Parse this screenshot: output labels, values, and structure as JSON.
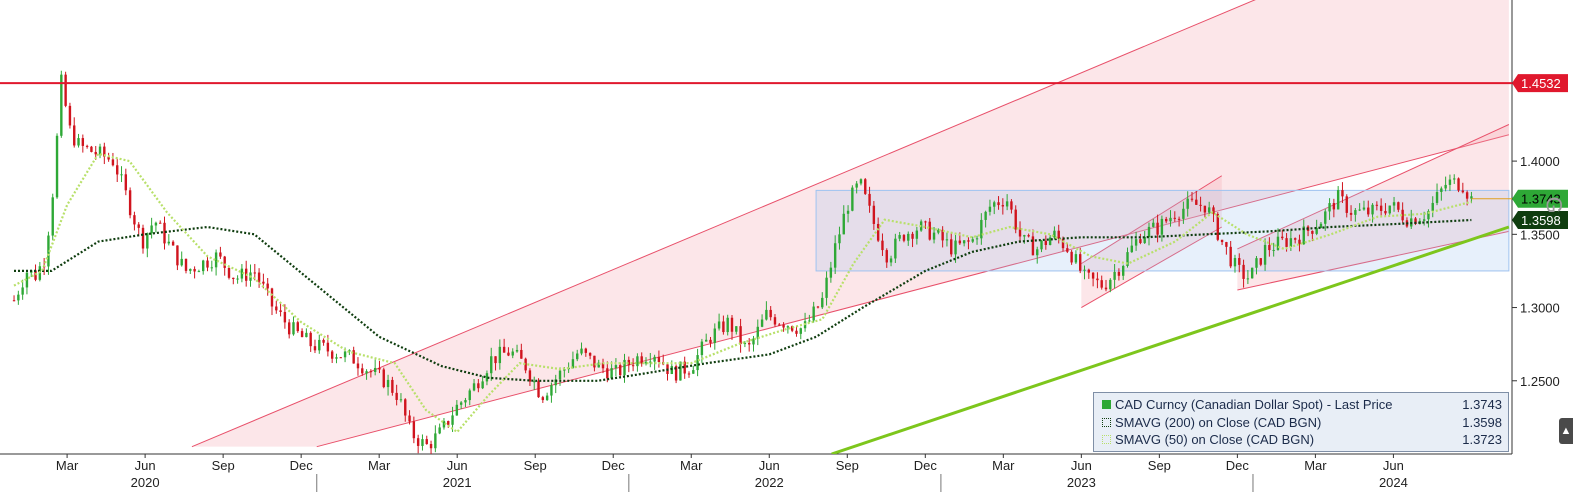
{
  "chart_data": {
    "type": "candlestick",
    "instrument": "CAD Curncy (Canadian Dollar Spot)",
    "ylim": [
      1.2,
      1.51
    ],
    "y_ticks": [
      "1.2500",
      "1.3000",
      "1.3500",
      "1.4000"
    ],
    "y_tick_values": [
      1.25,
      1.3,
      1.35,
      1.4
    ],
    "month_ticks": [
      {
        "label": "Mar",
        "t": 2020.2
      },
      {
        "label": "Jun",
        "t": 2020.45
      },
      {
        "label": "Sep",
        "t": 2020.7
      },
      {
        "label": "Dec",
        "t": 2020.95
      },
      {
        "label": "Mar",
        "t": 2021.2
      },
      {
        "label": "Jun",
        "t": 2021.45
      },
      {
        "label": "Sep",
        "t": 2021.7
      },
      {
        "label": "Dec",
        "t": 2021.95
      },
      {
        "label": "Mar",
        "t": 2022.2
      },
      {
        "label": "Jun",
        "t": 2022.45
      },
      {
        "label": "Sep",
        "t": 2022.7
      },
      {
        "label": "Dec",
        "t": 2022.95
      },
      {
        "label": "Mar",
        "t": 2023.2
      },
      {
        "label": "Jun",
        "t": 2023.45
      },
      {
        "label": "Sep",
        "t": 2023.7
      },
      {
        "label": "Dec",
        "t": 2023.95
      },
      {
        "label": "Mar",
        "t": 2024.2
      },
      {
        "label": "Jun",
        "t": 2024.45
      }
    ],
    "years": [
      {
        "label": "2020",
        "t": 2020.45
      },
      {
        "label": "2021",
        "t": 2021.45
      },
      {
        "label": "2022",
        "t": 2022.45
      },
      {
        "label": "2023",
        "t": 2023.45
      },
      {
        "label": "2024",
        "t": 2024.45
      }
    ],
    "x_range": [
      2020.03,
      2024.7
    ],
    "price_path": [
      [
        2020.03,
        1.305
      ],
      [
        2020.07,
        1.325
      ],
      [
        2020.1,
        1.322
      ],
      [
        2020.13,
        1.335
      ],
      [
        2020.16,
        1.39
      ],
      [
        2020.18,
        1.455
      ],
      [
        2020.21,
        1.42
      ],
      [
        2020.24,
        1.41
      ],
      [
        2020.3,
        1.405
      ],
      [
        2020.35,
        1.4
      ],
      [
        2020.4,
        1.37
      ],
      [
        2020.44,
        1.345
      ],
      [
        2020.48,
        1.36
      ],
      [
        2020.52,
        1.345
      ],
      [
        2020.58,
        1.325
      ],
      [
        2020.63,
        1.33
      ],
      [
        2020.68,
        1.335
      ],
      [
        2020.74,
        1.32
      ],
      [
        2020.8,
        1.325
      ],
      [
        2020.86,
        1.3
      ],
      [
        2020.92,
        1.285
      ],
      [
        2020.98,
        1.275
      ],
      [
        2021.05,
        1.27
      ],
      [
        2021.12,
        1.265
      ],
      [
        2021.18,
        1.255
      ],
      [
        2021.22,
        1.25
      ],
      [
        2021.26,
        1.24
      ],
      [
        2021.3,
        1.215
      ],
      [
        2021.35,
        1.205
      ],
      [
        2021.4,
        1.215
      ],
      [
        2021.44,
        1.23
      ],
      [
        2021.5,
        1.245
      ],
      [
        2021.56,
        1.265
      ],
      [
        2021.62,
        1.27
      ],
      [
        2021.67,
        1.26
      ],
      [
        2021.72,
        1.24
      ],
      [
        2021.78,
        1.255
      ],
      [
        2021.84,
        1.27
      ],
      [
        2021.9,
        1.26
      ],
      [
        2021.96,
        1.255
      ],
      [
        2022.02,
        1.265
      ],
      [
        2022.08,
        1.27
      ],
      [
        2022.14,
        1.255
      ],
      [
        2022.2,
        1.26
      ],
      [
        2022.26,
        1.28
      ],
      [
        2022.32,
        1.29
      ],
      [
        2022.38,
        1.27
      ],
      [
        2022.44,
        1.295
      ],
      [
        2022.5,
        1.29
      ],
      [
        2022.56,
        1.285
      ],
      [
        2022.62,
        1.305
      ],
      [
        2022.66,
        1.34
      ],
      [
        2022.7,
        1.37
      ],
      [
        2022.74,
        1.385
      ],
      [
        2022.78,
        1.36
      ],
      [
        2022.83,
        1.335
      ],
      [
        2022.88,
        1.35
      ],
      [
        2022.93,
        1.355
      ],
      [
        2022.98,
        1.35
      ],
      [
        2023.04,
        1.34
      ],
      [
        2023.1,
        1.345
      ],
      [
        2023.16,
        1.37
      ],
      [
        2023.21,
        1.375
      ],
      [
        2023.26,
        1.345
      ],
      [
        2023.31,
        1.34
      ],
      [
        2023.36,
        1.35
      ],
      [
        2023.41,
        1.34
      ],
      [
        2023.46,
        1.32
      ],
      [
        2023.52,
        1.315
      ],
      [
        2023.58,
        1.33
      ],
      [
        2023.64,
        1.35
      ],
      [
        2023.7,
        1.355
      ],
      [
        2023.75,
        1.365
      ],
      [
        2023.8,
        1.37
      ],
      [
        2023.85,
        1.37
      ],
      [
        2023.9,
        1.345
      ],
      [
        2023.95,
        1.325
      ],
      [
        2023.99,
        1.32
      ],
      [
        2024.04,
        1.34
      ],
      [
        2024.1,
        1.345
      ],
      [
        2024.16,
        1.35
      ],
      [
        2024.22,
        1.36
      ],
      [
        2024.27,
        1.375
      ],
      [
        2024.32,
        1.365
      ],
      [
        2024.38,
        1.365
      ],
      [
        2024.44,
        1.37
      ],
      [
        2024.5,
        1.36
      ],
      [
        2024.56,
        1.365
      ],
      [
        2024.62,
        1.385
      ],
      [
        2024.67,
        1.385
      ],
      [
        2024.7,
        1.374
      ]
    ],
    "series": [
      {
        "name": "SMAVG (200)  on Close (CAD BGN)",
        "color": "#0f3d0f",
        "points": [
          [
            2020.03,
            1.325
          ],
          [
            2020.15,
            1.325
          ],
          [
            2020.3,
            1.345
          ],
          [
            2020.45,
            1.35
          ],
          [
            2020.65,
            1.355
          ],
          [
            2020.8,
            1.35
          ],
          [
            2021.0,
            1.315
          ],
          [
            2021.2,
            1.28
          ],
          [
            2021.4,
            1.26
          ],
          [
            2021.55,
            1.252
          ],
          [
            2021.7,
            1.25
          ],
          [
            2021.9,
            1.25
          ],
          [
            2022.05,
            1.255
          ],
          [
            2022.25,
            1.262
          ],
          [
            2022.45,
            1.268
          ],
          [
            2022.6,
            1.28
          ],
          [
            2022.75,
            1.3
          ],
          [
            2022.95,
            1.325
          ],
          [
            2023.1,
            1.338
          ],
          [
            2023.25,
            1.345
          ],
          [
            2023.45,
            1.348
          ],
          [
            2023.65,
            1.348
          ],
          [
            2023.85,
            1.35
          ],
          [
            2024.05,
            1.352
          ],
          [
            2024.25,
            1.355
          ],
          [
            2024.45,
            1.357
          ],
          [
            2024.7,
            1.3598
          ]
        ]
      },
      {
        "name": "SMAVG (50)  on Close (CAD BGN)",
        "color": "#b8e06a",
        "points": [
          [
            2020.03,
            1.315
          ],
          [
            2020.12,
            1.325
          ],
          [
            2020.2,
            1.37
          ],
          [
            2020.3,
            1.405
          ],
          [
            2020.4,
            1.4
          ],
          [
            2020.52,
            1.365
          ],
          [
            2020.65,
            1.335
          ],
          [
            2020.8,
            1.32
          ],
          [
            2020.95,
            1.29
          ],
          [
            2021.1,
            1.27
          ],
          [
            2021.25,
            1.262
          ],
          [
            2021.35,
            1.23
          ],
          [
            2021.45,
            1.215
          ],
          [
            2021.55,
            1.24
          ],
          [
            2021.65,
            1.262
          ],
          [
            2021.78,
            1.258
          ],
          [
            2021.92,
            1.262
          ],
          [
            2022.05,
            1.262
          ],
          [
            2022.2,
            1.262
          ],
          [
            2022.35,
            1.275
          ],
          [
            2022.5,
            1.285
          ],
          [
            2022.62,
            1.292
          ],
          [
            2022.72,
            1.33
          ],
          [
            2022.82,
            1.36
          ],
          [
            2022.95,
            1.355
          ],
          [
            2023.1,
            1.348
          ],
          [
            2023.22,
            1.355
          ],
          [
            2023.35,
            1.35
          ],
          [
            2023.48,
            1.335
          ],
          [
            2023.6,
            1.33
          ],
          [
            2023.75,
            1.345
          ],
          [
            2023.87,
            1.365
          ],
          [
            2023.98,
            1.35
          ],
          [
            2024.1,
            1.34
          ],
          [
            2024.25,
            1.35
          ],
          [
            2024.4,
            1.362
          ],
          [
            2024.55,
            1.364
          ],
          [
            2024.7,
            1.3723
          ]
        ]
      }
    ],
    "horizontal_lines": [
      {
        "value": 1.4532,
        "color": "#e0182d"
      }
    ],
    "last_price_tags": [
      {
        "label": "1.4532",
        "value": 1.4532,
        "color": "#e0182d",
        "text_color": "#ffffff"
      },
      {
        "label": "1.3743",
        "value": 1.3743,
        "color": "#2ea836",
        "text_color": "#000000"
      },
      {
        "label": "1.3598",
        "value": 1.3598,
        "color": "#0f3d0f",
        "text_color": "#ffffff"
      }
    ],
    "channels": [
      {
        "kind": "band",
        "color": "#f6a5b0",
        "lower": [
          [
            2021.0,
            1.205
          ],
          [
            2024.82,
            1.418
          ]
        ],
        "upper": [
          [
            2020.6,
            1.205
          ],
          [
            2024.82,
            1.583
          ]
        ]
      },
      {
        "kind": "band",
        "color": "#f6a5b0",
        "lower": [
          [
            2023.45,
            1.3
          ],
          [
            2023.9,
            1.355
          ]
        ],
        "upper": [
          [
            2023.45,
            1.33
          ],
          [
            2023.9,
            1.39
          ]
        ]
      },
      {
        "kind": "band",
        "color": "#f6a5b0",
        "lower": [
          [
            2023.95,
            1.312
          ],
          [
            2024.82,
            1.352
          ]
        ],
        "upper": [
          [
            2023.95,
            1.34
          ],
          [
            2024.82,
            1.425
          ]
        ]
      }
    ],
    "range_box": {
      "t0": 2022.6,
      "t1": 2024.82,
      "low": 1.325,
      "high": 1.38,
      "color": "#9fc3f0"
    },
    "support_line": {
      "color": "#7dc61c",
      "points": [
        [
          2022.65,
          1.2
        ],
        [
          2024.82,
          1.355
        ]
      ]
    },
    "legend": {
      "rows": [
        {
          "label": "CAD Curncy (Canadian Dollar Spot)  - Last Price",
          "value": "1.3743",
          "swatch": "#2ea836",
          "style": "solid"
        },
        {
          "label": "SMAVG (200)  on Close (CAD BGN)",
          "value": "1.3598",
          "swatch": "#0f3d0f",
          "style": "dotted"
        },
        {
          "label": "SMAVG (50)  on Close (CAD BGN)",
          "value": "1.3723",
          "swatch": "#b8e06a",
          "style": "dotted"
        }
      ]
    },
    "colors": {
      "up": "#2ea836",
      "down": "#d0141e",
      "axis": "#333333"
    }
  }
}
